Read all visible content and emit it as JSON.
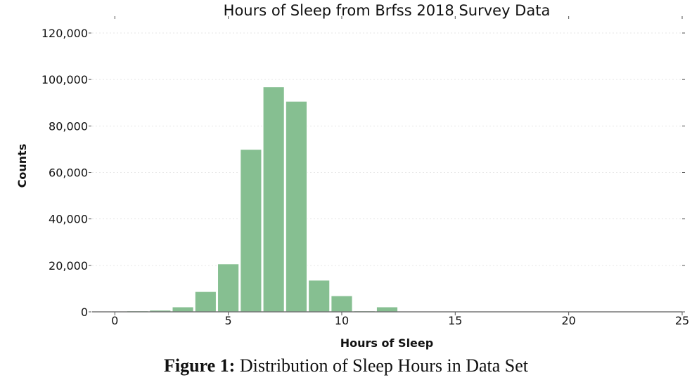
{
  "chart_data": {
    "type": "bar",
    "title": "Hours of Sleep from Brfss 2018 Survey Data",
    "xlabel": "Hours of Sleep",
    "ylabel": "Counts",
    "xlim": [
      -1,
      25
    ],
    "ylim": [
      0,
      120000
    ],
    "xticks": [
      0,
      5,
      10,
      15,
      20,
      25
    ],
    "xtick_labels": [
      "0",
      "5",
      "10",
      "15",
      "20",
      "25"
    ],
    "yticks": [
      0,
      20000,
      40000,
      60000,
      80000,
      100000,
      120000
    ],
    "ytick_labels": [
      "0",
      "20,000",
      "40,000",
      "60,000",
      "80,000",
      "100,000",
      "120,000"
    ],
    "grid": "horizontal dashed",
    "bar_color": "#86bf91",
    "x": [
      1,
      2,
      3,
      4,
      5,
      6,
      7,
      8,
      9,
      10,
      11,
      12,
      13,
      14,
      15,
      16,
      18,
      20
    ],
    "values": [
      500,
      800,
      2200,
      8800,
      20700,
      70000,
      96900,
      90700,
      13700,
      7000,
      500,
      2200,
      200,
      300,
      200,
      300,
      200,
      100
    ]
  },
  "caption": {
    "label": "Figure 1:",
    "text": "Distribution of Sleep Hours in Data Set"
  }
}
